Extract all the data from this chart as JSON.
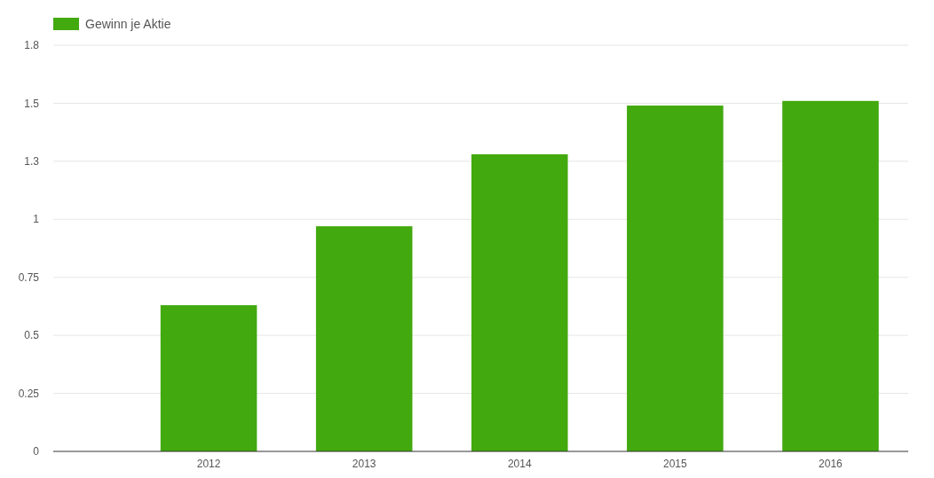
{
  "chart_data": {
    "type": "bar",
    "categories": [
      null,
      "2012",
      "2013",
      "2014",
      "2015",
      "2016"
    ],
    "series": [
      {
        "name": "Gewinn je Aktie",
        "color": "#42a90e",
        "values": [
          null,
          0.63,
          0.97,
          1.28,
          1.49,
          1.51
        ]
      }
    ],
    "ylim": [
      0,
      1.75
    ],
    "yticks": [
      0,
      0.25,
      0.5,
      0.75,
      1,
      {
        "value": 1.25,
        "label": "1.3"
      },
      1.5,
      {
        "value": 1.75,
        "label": "1.8"
      }
    ],
    "grid": "y",
    "legend": "top left"
  }
}
